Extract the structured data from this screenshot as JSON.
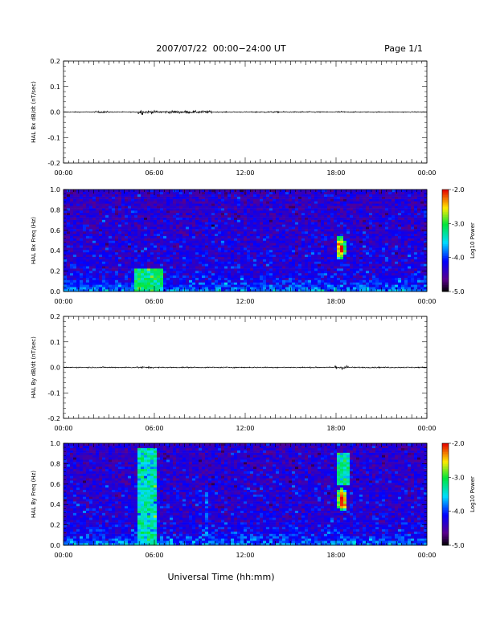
{
  "header": {
    "title": "2007/07/22  00:00−24:00 UT",
    "page": "Page 1/1"
  },
  "xaxis_label": "Universal Time (hh:mm)",
  "chart_data": [
    {
      "type": "line",
      "ylabel": "HAL Bx dB/dt (nT/sec)",
      "xlim": [
        0,
        24
      ],
      "ylim": [
        -0.2,
        0.2
      ],
      "xticks": [
        "00:00",
        "06:00",
        "12:00",
        "18:00",
        "00:00"
      ],
      "yticks": [
        "-0.2",
        "-0.1",
        "0.0",
        "0.1",
        "0.2"
      ],
      "activity": [
        {
          "start": 0.0,
          "end": 24.0,
          "amp": 0.002
        },
        {
          "start": 2.1,
          "end": 3.0,
          "amp": 0.004
        },
        {
          "start": 4.9,
          "end": 5.3,
          "amp": 0.012
        },
        {
          "start": 5.3,
          "end": 9.8,
          "amp": 0.006
        },
        {
          "start": 12.5,
          "end": 15.0,
          "amp": 0.003
        },
        {
          "start": 15.4,
          "end": 17.0,
          "amp": 0.003
        },
        {
          "start": 18.0,
          "end": 18.6,
          "amp": 0.004
        }
      ]
    },
    {
      "type": "heatmap",
      "ylabel": "HAL Bx Freq (Hz)",
      "xlim": [
        0,
        24
      ],
      "ylim": [
        0,
        1.0
      ],
      "xticks": [
        "00:00",
        "06:00",
        "12:00",
        "18:00",
        "00:00"
      ],
      "yticks": [
        "0.0",
        "0.2",
        "0.4",
        "0.6",
        "0.8",
        "1.0"
      ],
      "colorbar": {
        "label": "Log10 Power",
        "range": [
          -5.0,
          -2.0
        ],
        "ticks": [
          "-5.0",
          "-4.0",
          "-3.0",
          "-2.0"
        ]
      },
      "features": [
        {
          "kind": "band",
          "start": 4.7,
          "end": 6.5,
          "fmin": 0.0,
          "fmax": 0.22,
          "level": -3.2
        },
        {
          "kind": "band",
          "start": 9.8,
          "end": 10.7,
          "fmin": 0.0,
          "fmax": 0.45,
          "level": -4.3
        },
        {
          "kind": "blob",
          "t": 18.3,
          "f": 0.43,
          "dt": 0.35,
          "df": 0.12,
          "level": -2.1
        },
        {
          "kind": "band",
          "start": 20.5,
          "end": 21.0,
          "fmin": 0.0,
          "fmax": 0.5,
          "level": -4.3
        }
      ]
    },
    {
      "type": "line",
      "ylabel": "HAL By dB/dt (nT/sec)",
      "xlim": [
        0,
        24
      ],
      "ylim": [
        -0.2,
        0.2
      ],
      "xticks": [
        "00:00",
        "06:00",
        "12:00",
        "18:00",
        "00:00"
      ],
      "yticks": [
        "-0.2",
        "-0.1",
        "0.0",
        "0.1",
        "0.2"
      ],
      "activity": [
        {
          "start": 0.0,
          "end": 24.0,
          "amp": 0.0025
        },
        {
          "start": 4.8,
          "end": 6.0,
          "amp": 0.004
        },
        {
          "start": 17.9,
          "end": 18.8,
          "amp": 0.009
        }
      ]
    },
    {
      "type": "heatmap",
      "ylabel": "HAL By Freq (Hz)",
      "xlim": [
        0,
        24
      ],
      "ylim": [
        0,
        1.0
      ],
      "xticks": [
        "00:00",
        "06:00",
        "12:00",
        "18:00",
        "00:00"
      ],
      "yticks": [
        "0.0",
        "0.2",
        "0.4",
        "0.6",
        "0.8",
        "1.0"
      ],
      "colorbar": {
        "label": "Log10 Power",
        "range": [
          -5.0,
          -2.0
        ],
        "ticks": [
          "-5.0",
          "-4.0",
          "-3.0",
          "-2.0"
        ]
      },
      "features": [
        {
          "kind": "band",
          "start": 4.8,
          "end": 6.2,
          "fmin": 0.0,
          "fmax": 0.95,
          "level": -3.4
        },
        {
          "kind": "band",
          "start": 9.3,
          "end": 9.6,
          "fmin": 0.0,
          "fmax": 0.6,
          "level": -3.9
        },
        {
          "kind": "blob",
          "t": 18.4,
          "f": 0.45,
          "dt": 0.35,
          "df": 0.12,
          "level": -2.0
        },
        {
          "kind": "band",
          "start": 18.0,
          "end": 18.8,
          "fmin": 0.6,
          "fmax": 0.9,
          "level": -3.3
        }
      ]
    }
  ]
}
